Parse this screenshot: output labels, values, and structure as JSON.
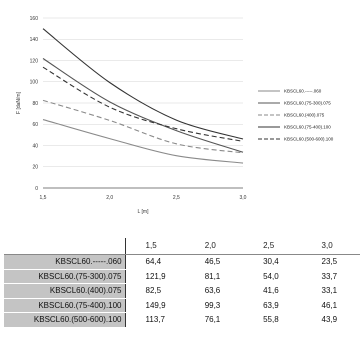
{
  "chart_data": {
    "type": "line",
    "x": [
      1.5,
      2.0,
      2.5,
      3.0
    ],
    "xticks": [
      "1,5",
      "2,0",
      "2,5",
      "3,0"
    ],
    "xlim": [
      1.5,
      3.0
    ],
    "ylim": [
      0,
      160
    ],
    "yticks": [
      "0",
      "20",
      "40",
      "60",
      "80",
      "100",
      "120",
      "140",
      "160"
    ],
    "xlabel": "L [m]",
    "ylabel": "F [daN/m]",
    "grid": "horizontal",
    "legend_position": "right",
    "series": [
      {
        "name": "KBSCL60.-----.060",
        "values": [
          64.4,
          46.5,
          30.4,
          23.5
        ],
        "color": "#8a8a8a",
        "dash": "solid"
      },
      {
        "name": "KBSCL60.(75-300).075",
        "values": [
          121.9,
          81.1,
          54.0,
          33.7
        ],
        "color": "#555555",
        "dash": "solid"
      },
      {
        "name": "KBSCL60.(400).075",
        "values": [
          82.5,
          63.6,
          41.6,
          33.1
        ],
        "color": "#8a8a8a",
        "dash": "dash"
      },
      {
        "name": "KBSCL60.(75-400).100",
        "values": [
          149.9,
          99.3,
          63.9,
          46.1
        ],
        "color": "#333333",
        "dash": "solid"
      },
      {
        "name": "KBSCL60.(500-600).100",
        "values": [
          113.7,
          76.1,
          55.8,
          43.9
        ],
        "color": "#333333",
        "dash": "dash"
      }
    ]
  },
  "table": {
    "headers": [
      "1,5",
      "2,0",
      "2,5",
      "3,0"
    ],
    "rows": [
      {
        "label": "KBSCL60.-----.060",
        "cells": [
          "64,4",
          "46,5",
          "30,4",
          "23,5"
        ]
      },
      {
        "label": "KBSCL60.(75-300).075",
        "cells": [
          "121,9",
          "81,1",
          "54,0",
          "33,7"
        ]
      },
      {
        "label": "KBSCL60.(400).075",
        "cells": [
          "82,5",
          "63,6",
          "41,6",
          "33,1"
        ]
      },
      {
        "label": "KBSCL60.(75-400).100",
        "cells": [
          "149,9",
          "99,3",
          "63,9",
          "46,1"
        ]
      },
      {
        "label": "KBSCL60.(500-600).100",
        "cells": [
          "113,7",
          "76,1",
          "55,8",
          "43,9"
        ]
      }
    ]
  }
}
